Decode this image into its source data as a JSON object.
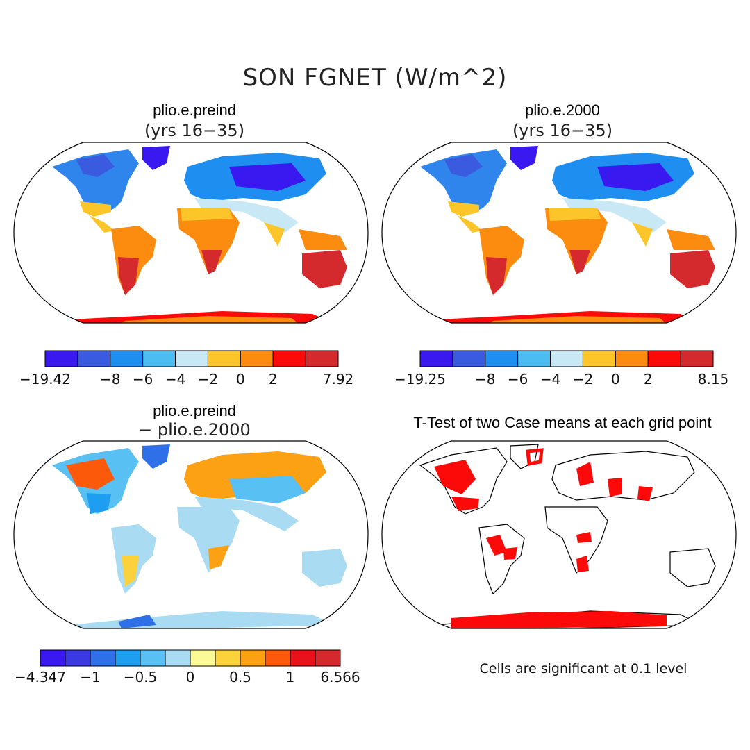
{
  "figure": {
    "title": "SON FGNET (W/m^2)",
    "note": "Cells are significant at 0.1 level"
  },
  "panels": [
    {
      "id": "preind",
      "title": "plio.e.preind",
      "subtitle": "(yrs 16−35)",
      "colorbar": {
        "colors": [
          "#3a18f0",
          "#3a5ae0",
          "#1e8ff0",
          "#4dbcf0",
          "#c9e8f5",
          "#fcc62a",
          "#fc8c10",
          "#fc0a0a",
          "#d42a2e"
        ],
        "labels": [
          "−19.42",
          "−8",
          "−6",
          "−4",
          "−2",
          "0",
          "2",
          "7.92"
        ],
        "label_at_boundary": [
          0,
          2,
          3,
          4,
          5,
          6,
          7,
          9
        ]
      }
    },
    {
      "id": "y2000",
      "title": "plio.e.2000",
      "subtitle": "(yrs 16−35)",
      "colorbar": {
        "colors": [
          "#3a18f0",
          "#3a5ae0",
          "#1e8ff0",
          "#4dbcf0",
          "#c9e8f5",
          "#fcc62a",
          "#fc8c10",
          "#fc0a0a",
          "#d42a2e"
        ],
        "labels": [
          "−19.25",
          "−8",
          "−6",
          "−4",
          "−2",
          "0",
          "2",
          "8.15"
        ],
        "label_at_boundary": [
          0,
          2,
          3,
          4,
          5,
          6,
          7,
          9
        ]
      }
    },
    {
      "id": "diff",
      "title": "plio.e.preind",
      "subtitle": "− plio.e.2000",
      "colorbar": {
        "colors": [
          "#3a18f0",
          "#3a3ae0",
          "#2f6fe8",
          "#1e9ef0",
          "#58c0f2",
          "#a9dcf2",
          "#fcfa96",
          "#fcd23c",
          "#fca014",
          "#fc5a0a",
          "#e8121a",
          "#d42a2e"
        ],
        "labels": [
          "−4.347",
          "−1",
          "−0.5",
          "0",
          "0.5",
          "1",
          "6.566"
        ],
        "label_at_boundary": [
          0,
          2,
          4,
          6,
          8,
          10,
          12
        ]
      }
    },
    {
      "id": "ttest",
      "title": "T-Test of two Case means at each grid point"
    }
  ]
}
